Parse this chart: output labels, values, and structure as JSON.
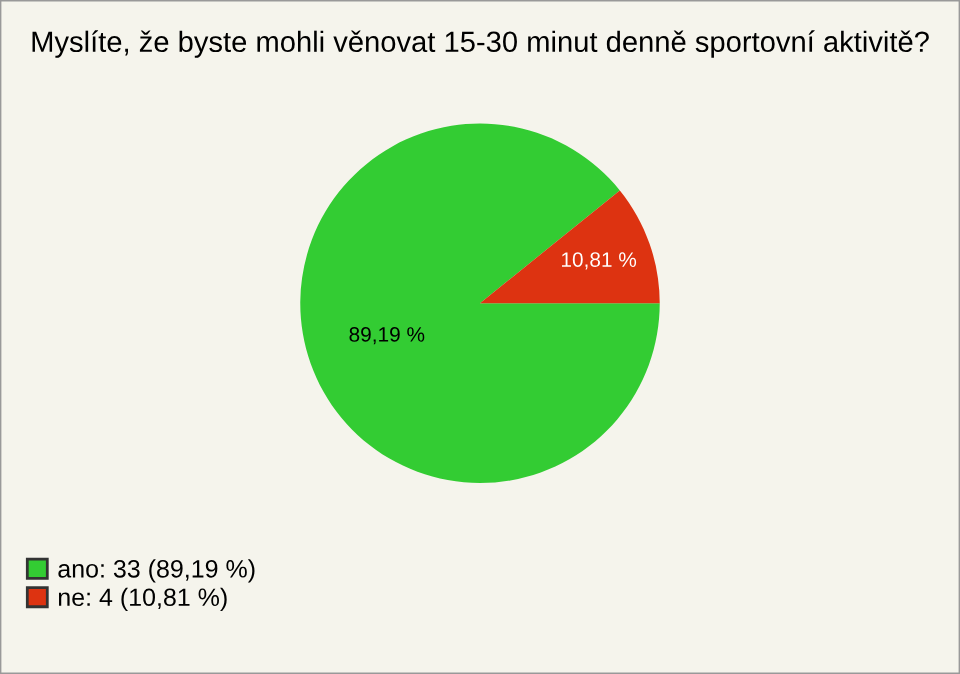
{
  "chart_data": {
    "type": "pie",
    "title": "Myslíte, že byste mohli věnovat 15-30 minut denně sportovní aktivitě?",
    "categories": [
      "ano: 33 (89,19 %)",
      "ne: 4 (10,81 %)"
    ],
    "values": [
      89.19,
      10.81
    ],
    "colors": [
      "#33cc33",
      "#dd3311"
    ],
    "value_labels": [
      "89,19 %",
      "10,81 %"
    ],
    "legend": "bottom left"
  }
}
